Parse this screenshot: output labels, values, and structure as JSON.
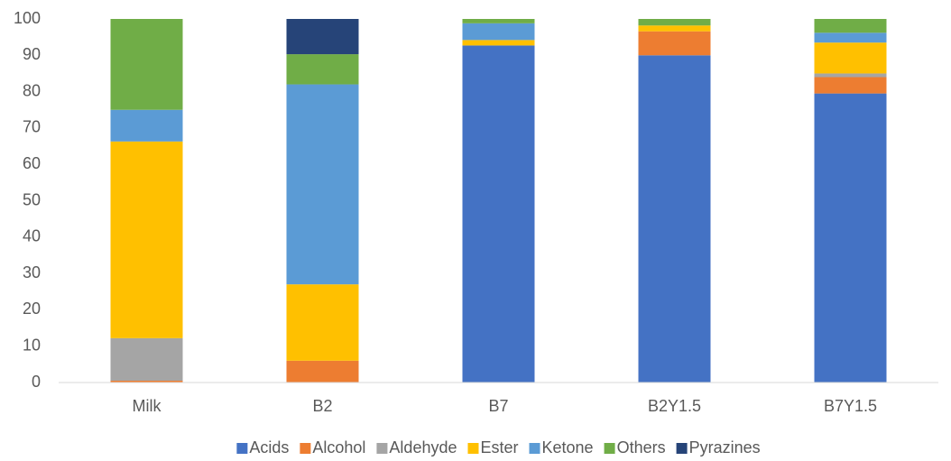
{
  "chart_data": {
    "type": "stacked_bar",
    "categories": [
      "Milk",
      "B2",
      "B7",
      "B2Y1.5",
      "B7Y1.5"
    ],
    "series": [
      {
        "name": "Acids",
        "color": "#4472c4",
        "values": [
          0,
          0,
          92.7,
          90,
          79.5
        ]
      },
      {
        "name": "Alcohol",
        "color": "#ed7d31",
        "values": [
          0.5,
          6,
          0,
          6.6,
          4.5
        ]
      },
      {
        "name": "Aldehyde",
        "color": "#a5a5a5",
        "values": [
          11.7,
          0,
          0,
          0,
          1
        ]
      },
      {
        "name": "Ester",
        "color": "#ffc000",
        "values": [
          54.1,
          21,
          1.5,
          1.6,
          8.5
        ]
      },
      {
        "name": "Ketone",
        "color": "#5b9bd5",
        "values": [
          8.7,
          55,
          4.6,
          0,
          2.7
        ]
      },
      {
        "name": "Others",
        "color": "#70ad47",
        "values": [
          25,
          8.3,
          1.2,
          1.8,
          3.8
        ]
      },
      {
        "name": "Pyrazines",
        "color": "#264478",
        "values": [
          0,
          9.7,
          0,
          0,
          0
        ]
      }
    ],
    "ylim": [
      0,
      100
    ],
    "yticks": [
      0,
      10,
      20,
      30,
      40,
      50,
      60,
      70,
      80,
      90,
      100
    ],
    "grid": false,
    "legend": "bottom"
  }
}
